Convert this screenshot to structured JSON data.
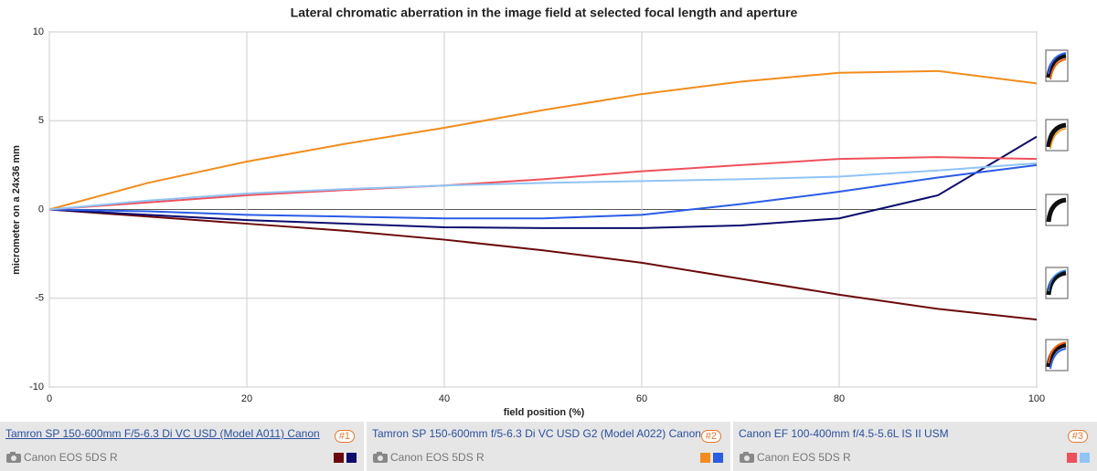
{
  "chart_data": {
    "type": "line",
    "title": "Lateral chromatic aberration in the image field at selected focal length and aperture",
    "xlabel": "field position (%)",
    "ylabel": "micrometer on a 24x36 mm",
    "x": [
      0,
      10,
      20,
      30,
      40,
      50,
      60,
      70,
      80,
      90,
      100
    ],
    "xlim": [
      0,
      100
    ],
    "xticks": [
      0,
      20,
      40,
      60,
      80,
      100
    ],
    "ylim": [
      -10,
      10
    ],
    "yticks": [
      -10,
      -5,
      0,
      5,
      10
    ],
    "grid": true,
    "series": [
      {
        "color": "#6b0a0a",
        "values": [
          0,
          -0.4,
          -0.8,
          -1.2,
          -1.7,
          -2.3,
          -3.0,
          -3.9,
          -4.8,
          -5.6,
          -6.2
        ]
      },
      {
        "color": "#0c0c6e",
        "values": [
          0,
          -0.3,
          -0.6,
          -0.8,
          -1.0,
          -1.05,
          -1.05,
          -0.9,
          -0.5,
          0.8,
          4.1
        ]
      },
      {
        "color": "#f28c1c",
        "values": [
          0,
          1.5,
          2.7,
          3.7,
          4.6,
          5.6,
          6.5,
          7.2,
          7.7,
          7.8,
          7.1
        ]
      },
      {
        "color": "#2a5ce6",
        "values": [
          0,
          -0.1,
          -0.3,
          -0.4,
          -0.5,
          -0.5,
          -0.3,
          0.3,
          1.0,
          1.8,
          2.5
        ]
      },
      {
        "color": "#f0505a",
        "values": [
          0,
          0.4,
          0.8,
          1.1,
          1.35,
          1.7,
          2.15,
          2.5,
          2.85,
          2.95,
          2.85
        ]
      },
      {
        "color": "#90c4f5",
        "values": [
          0,
          0.5,
          0.9,
          1.15,
          1.35,
          1.5,
          1.6,
          1.7,
          1.85,
          2.2,
          2.6
        ]
      }
    ]
  },
  "lenses": [
    {
      "name": "Tamron SP 150-600mm F/5-6.3 Di VC USD (Model A011) Canon",
      "badge": "#1",
      "camera": "Canon EOS 5DS R"
    },
    {
      "name": "Tamron SP 150-600mm f/5-6.3 Di VC USD G2 (Model A022) Canon",
      "badge": "#2",
      "camera": "Canon EOS 5DS R"
    },
    {
      "name": "Canon EF 100-400mm f/4.5-5.6L IS II USM",
      "badge": "#3",
      "camera": "Canon EOS 5DS R"
    }
  ]
}
